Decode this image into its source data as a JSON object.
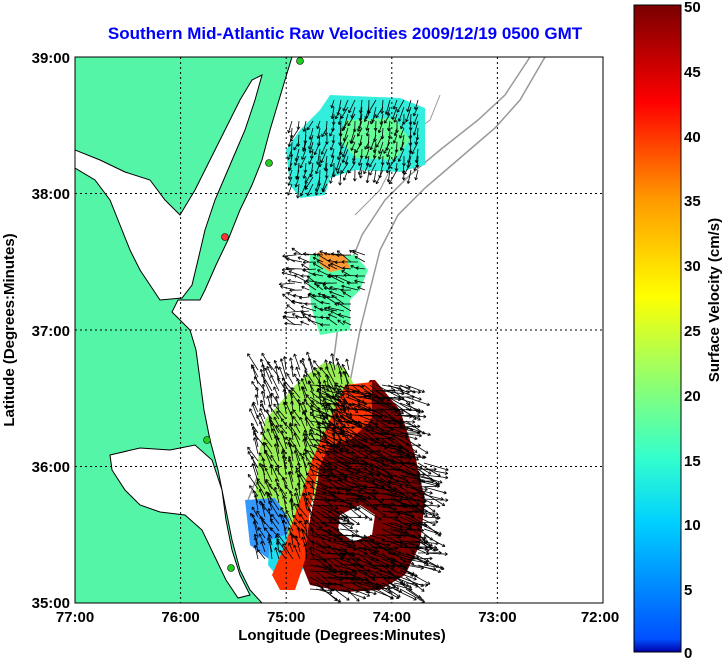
{
  "title": "Southern Mid-Atlantic Raw Velocities 2009/12/19 0500 GMT",
  "x_axis": {
    "label": "Longitude (Degrees:Minutes)",
    "ticks": [
      "77:00",
      "76:00",
      "75:00",
      "74:00",
      "73:00",
      "72:00"
    ]
  },
  "y_axis": {
    "label": "Latitude (Degrees:Minutes)",
    "ticks": [
      "39:00",
      "38:00",
      "37:00",
      "36:00",
      "35:00"
    ]
  },
  "colorbar": {
    "label": "Surface Velocity (cm/s)",
    "ticks": [
      "50",
      "45",
      "40",
      "35",
      "30",
      "25",
      "20",
      "15",
      "10",
      "5",
      "0"
    ],
    "min": 0,
    "max": 50,
    "colormap": "jet"
  },
  "colors": {
    "land": "#55f5a8",
    "coast": "#000000",
    "bathymetry": "#999999",
    "title": "#0000ff",
    "station": "#22cc22",
    "station_active": "#ff3333"
  },
  "grid": "dotted",
  "extent": {
    "lon": [
      -77,
      -72
    ],
    "lat": [
      35,
      39
    ]
  }
}
